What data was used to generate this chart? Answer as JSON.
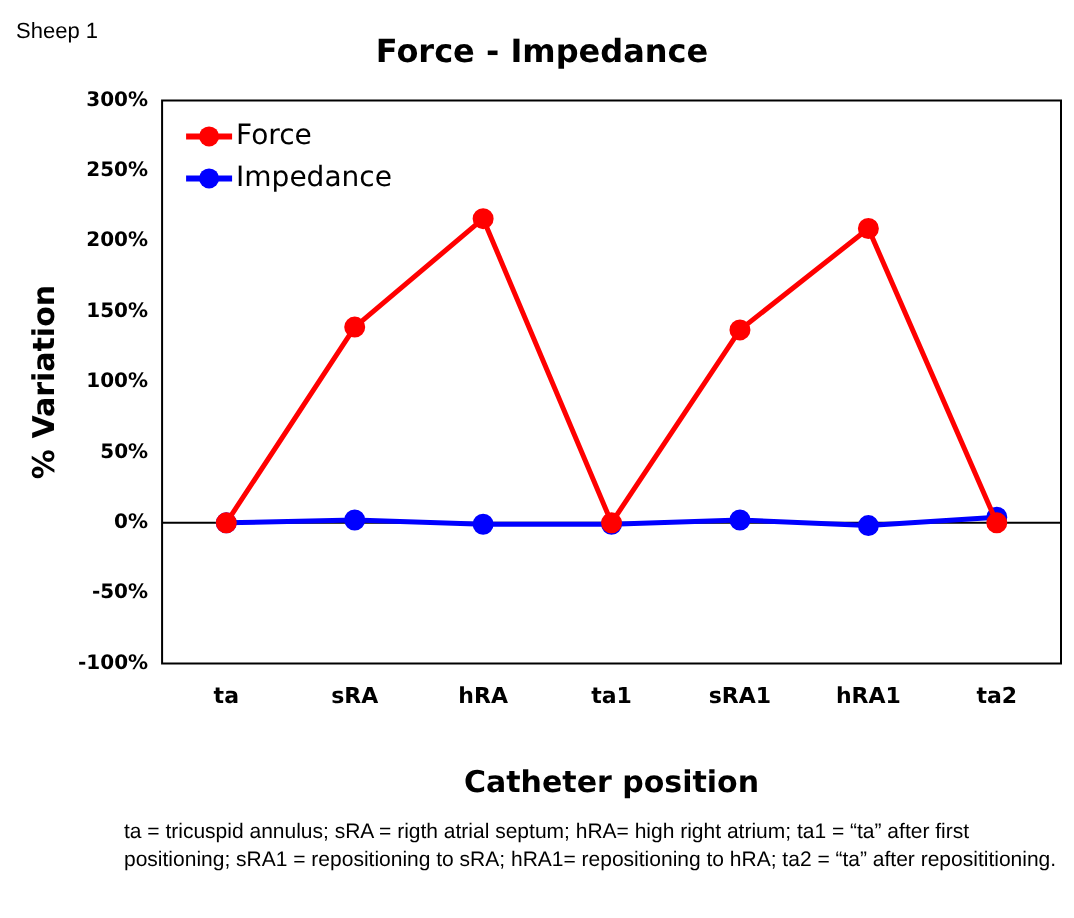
{
  "chart_data": {
    "type": "line",
    "title": "Force - Impedance",
    "xlabel": "Catheter position",
    "ylabel": "% Variation",
    "categories": [
      "ta",
      "sRA",
      "hRA",
      "ta1",
      "sRA1",
      "hRA1",
      "ta2"
    ],
    "series": [
      {
        "name": "Force",
        "color": "#ff0000",
        "values": [
          0,
          139,
          216,
          0,
          137,
          209,
          0
        ]
      },
      {
        "name": "Impedance",
        "color": "#0000ff",
        "values": [
          0,
          2,
          -1,
          -1,
          2,
          -2,
          4
        ]
      }
    ],
    "ylim": [
      -100,
      300
    ],
    "yticks": [
      {
        "value": -100,
        "label": "-100%"
      },
      {
        "value": -50,
        "label": "-50%"
      },
      {
        "value": 0,
        "label": "0%"
      },
      {
        "value": 50,
        "label": "50%"
      },
      {
        "value": 100,
        "label": "100%"
      },
      {
        "value": 150,
        "label": "150%"
      },
      {
        "value": 200,
        "label": "200%"
      },
      {
        "value": 250,
        "label": "250%"
      },
      {
        "value": 300,
        "label": "300%"
      }
    ],
    "grid": false,
    "ref_lines": [
      {
        "axis": "y",
        "value": 0,
        "color": "#000000"
      }
    ],
    "legend": "top left",
    "marker": "circle",
    "line_style": "solid",
    "annotations": [
      "Sheep 1",
      "ta = tricuspid annulus; sRA = rigth atrial septum; hRA= high right atrium; ta1 = “ta” after first positioning; sRA1 = repositioning to sRA; hRA1= repositioning to hRA; ta2 = “ta” after reposititioning."
    ]
  }
}
